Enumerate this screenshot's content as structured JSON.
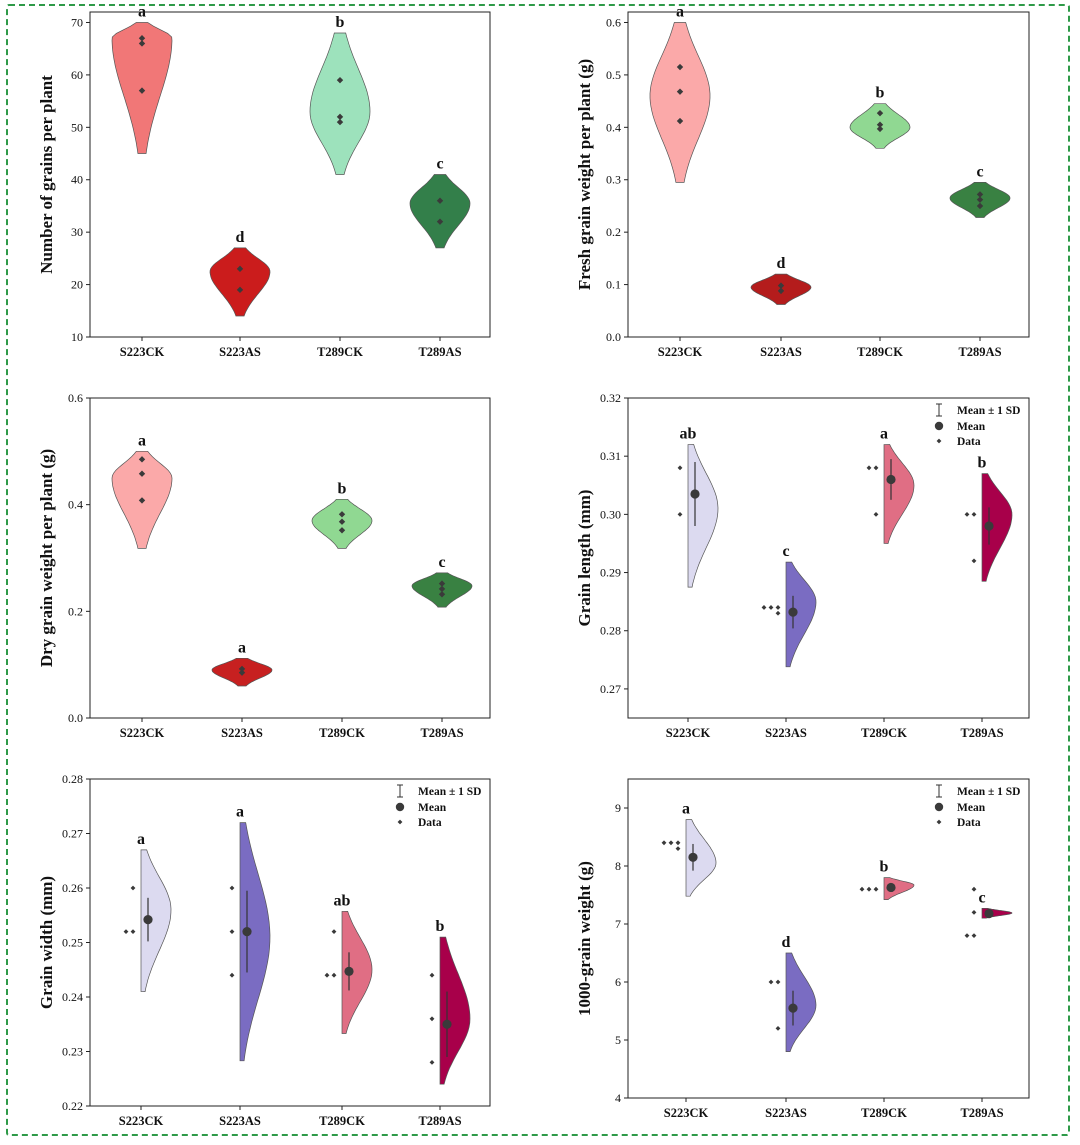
{
  "chart_data": [
    {
      "type": "violin",
      "ylabel": "Number of grains per plant",
      "ylim": [
        10,
        72
      ],
      "yticks": [
        10,
        20,
        30,
        40,
        50,
        60,
        70
      ],
      "categories": [
        "S223CK",
        "S223AS",
        "T289CK",
        "T289AS"
      ],
      "colors": [
        "#f07070",
        "#c81010",
        "#98e0b8",
        "#287840"
      ],
      "groups": [
        {
          "points": [
            67,
            66,
            57
          ],
          "range": [
            45,
            70
          ],
          "mode": 67,
          "letter": "a"
        },
        {
          "points": [
            23,
            19
          ],
          "range": [
            14,
            27
          ],
          "mode": 22.5,
          "letter": "d"
        },
        {
          "points": [
            59,
            52,
            51
          ],
          "range": [
            41,
            68
          ],
          "mode": 53,
          "letter": "b"
        },
        {
          "points": [
            36,
            32
          ],
          "range": [
            27,
            41
          ],
          "mode": 35.5,
          "letter": "c"
        }
      ]
    },
    {
      "type": "violin",
      "ylabel": "Fresh grain weight per plant (g)",
      "ylim": [
        0.0,
        0.62
      ],
      "yticks": [
        "0.0",
        "0.1",
        "0.2",
        "0.3",
        "0.4",
        "0.5",
        "0.6"
      ],
      "categories": [
        "S223CK",
        "S223AS",
        "T289CK",
        "T289AS"
      ],
      "colors": [
        "#fba4a4",
        "#b01010",
        "#8ad68c",
        "#2e7a38"
      ],
      "groups": [
        {
          "points": [
            0.515,
            0.468,
            0.412
          ],
          "range": [
            0.295,
            0.6
          ],
          "mode": 0.46,
          "letter": "a"
        },
        {
          "points": [
            0.098,
            0.088
          ],
          "range": [
            0.062,
            0.12
          ],
          "mode": 0.095,
          "letter": "d"
        },
        {
          "points": [
            0.427,
            0.405,
            0.397
          ],
          "range": [
            0.36,
            0.445
          ],
          "mode": 0.4,
          "letter": "b"
        },
        {
          "points": [
            0.272,
            0.262,
            0.25
          ],
          "range": [
            0.228,
            0.295
          ],
          "mode": 0.265,
          "letter": "c"
        }
      ]
    },
    {
      "type": "violin",
      "ylabel": "Dry grain weight per plant (g)",
      "ylim": [
        0.0,
        0.6
      ],
      "yticks": [
        "0.0",
        "0.2",
        "0.4",
        "0.6"
      ],
      "categories": [
        "S223CK",
        "S223AS",
        "T289CK",
        "T289AS"
      ],
      "colors": [
        "#fba4a4",
        "#c41414",
        "#8ad68c",
        "#2e7a38"
      ],
      "groups": [
        {
          "points": [
            0.485,
            0.458,
            0.408
          ],
          "range": [
            0.318,
            0.5
          ],
          "mode": 0.45,
          "letter": "a"
        },
        {
          "points": [
            0.092,
            0.085
          ],
          "range": [
            0.06,
            0.112
          ],
          "mode": 0.09,
          "letter": "a"
        },
        {
          "points": [
            0.382,
            0.368,
            0.352
          ],
          "range": [
            0.318,
            0.41
          ],
          "mode": 0.37,
          "letter": "b"
        },
        {
          "points": [
            0.252,
            0.242,
            0.232
          ],
          "range": [
            0.208,
            0.272
          ],
          "mode": 0.248,
          "letter": "c"
        }
      ]
    },
    {
      "type": "half-violin",
      "ylabel": "Grain length (mm)",
      "ylim": [
        0.265,
        0.32
      ],
      "yticks": [
        "0.27",
        "0.28",
        "0.29",
        "0.30",
        "0.31",
        "0.32"
      ],
      "categories": [
        "S223CK",
        "S223AS",
        "T289CK",
        "T289AS"
      ],
      "colors": [
        "#dcdaf0",
        "#7a6cc2",
        "#e06e84",
        "#a8004a"
      ],
      "legend": [
        "Mean ± 1 SD",
        "Mean",
        "Data"
      ],
      "groups": [
        {
          "points": [
            0.308,
            0.3
          ],
          "mean": 0.3035,
          "sd": 0.0055,
          "range": [
            0.2875,
            0.312
          ],
          "mode": 0.301,
          "letter": "ab"
        },
        {
          "points": [
            0.284,
            0.284,
            0.284,
            0.283
          ],
          "mean": 0.2832,
          "sd": 0.0028,
          "range": [
            0.2738,
            0.2918
          ],
          "mode": 0.285,
          "letter": "c"
        },
        {
          "points": [
            0.308,
            0.308,
            0.3
          ],
          "mean": 0.306,
          "sd": 0.0035,
          "range": [
            0.295,
            0.312
          ],
          "mode": 0.305,
          "letter": "a"
        },
        {
          "points": [
            0.3,
            0.3,
            0.292
          ],
          "mean": 0.298,
          "sd": 0.0032,
          "range": [
            0.2885,
            0.307
          ],
          "mode": 0.3,
          "letter": "b"
        }
      ]
    },
    {
      "type": "half-violin",
      "ylabel": "Grain width (mm)",
      "ylim": [
        0.22,
        0.28
      ],
      "yticks": [
        "0.22",
        "0.23",
        "0.24",
        "0.25",
        "0.26",
        "0.27",
        "0.28"
      ],
      "categories": [
        "S223CK",
        "S223AS",
        "T289CK",
        "T289AS"
      ],
      "colors": [
        "#dcdaf0",
        "#7a6cc2",
        "#e06e84",
        "#a8004a"
      ],
      "legend": [
        "Mean ± 1 SD",
        "Mean",
        "Data"
      ],
      "groups": [
        {
          "points": [
            0.26,
            0.252,
            0.252
          ],
          "mean": 0.2542,
          "sd": 0.004,
          "range": [
            0.241,
            0.267
          ],
          "mode": 0.256,
          "letter": "a"
        },
        {
          "points": [
            0.26,
            0.252,
            0.244
          ],
          "mean": 0.252,
          "sd": 0.0075,
          "range": [
            0.2283,
            0.272
          ],
          "mode": 0.251,
          "letter": "a"
        },
        {
          "points": [
            0.252,
            0.244,
            0.244
          ],
          "mean": 0.2447,
          "sd": 0.0035,
          "range": [
            0.2333,
            0.2557
          ],
          "mode": 0.245,
          "letter": "ab"
        },
        {
          "points": [
            0.244,
            0.236,
            0.228
          ],
          "mean": 0.235,
          "sd": 0.006,
          "range": [
            0.224,
            0.251
          ],
          "mode": 0.236,
          "letter": "b"
        }
      ]
    },
    {
      "type": "half-violin",
      "ylabel": "1000-grain weight (g)",
      "ylim": [
        4,
        9.5
      ],
      "yticks": [
        "4",
        "5",
        "6",
        "7",
        "8",
        "9"
      ],
      "categories": [
        "S223CK",
        "S223AS",
        "T289CK",
        "T289AS"
      ],
      "colors": [
        "#dcdaf0",
        "#7a6cc2",
        "#e06e84",
        "#a8004a"
      ],
      "legend": [
        "Mean ± 1 SD",
        "Mean",
        "Data"
      ],
      "groups": [
        {
          "points": [
            8.4,
            8.4,
            8.4,
            8.3
          ],
          "mean": 8.15,
          "sd": 0.23,
          "range": [
            7.48,
            8.8
          ],
          "mode": 8.05,
          "letter": "a"
        },
        {
          "points": [
            6.0,
            6.0,
            5.2
          ],
          "mean": 5.55,
          "sd": 0.3,
          "range": [
            4.8,
            6.5
          ],
          "mode": 5.6,
          "letter": "d"
        },
        {
          "points": [
            7.6,
            7.6,
            7.6
          ],
          "mean": 7.63,
          "sd": 0.05,
          "range": [
            7.42,
            7.8
          ],
          "mode": 7.67,
          "letter": "b"
        },
        {
          "points": [
            7.6,
            6.8,
            6.8,
            7.2
          ],
          "mean": 7.18,
          "sd": 0.08,
          "range": [
            7.1,
            7.27
          ],
          "mode": 7.19,
          "letter": "c"
        }
      ]
    }
  ]
}
